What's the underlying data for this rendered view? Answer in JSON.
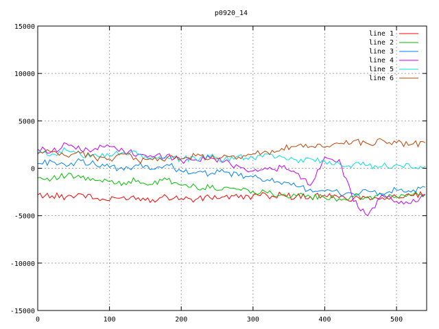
{
  "chart_data": {
    "type": "line",
    "title": "p0920_14",
    "xlabel": "",
    "ylabel": "",
    "xlim": [
      0,
      542
    ],
    "ylim": [
      -15000,
      15000
    ],
    "x_ticks": [
      0,
      100,
      200,
      300,
      400,
      500
    ],
    "y_ticks": [
      -15000,
      -10000,
      -5000,
      0,
      5000,
      10000,
      15000
    ],
    "grid": true,
    "legend_position": "top-right",
    "x": [
      0,
      20,
      40,
      60,
      80,
      100,
      120,
      140,
      160,
      180,
      200,
      220,
      240,
      260,
      280,
      300,
      320,
      340,
      360,
      380,
      400,
      420,
      440,
      460,
      480,
      500,
      520,
      540
    ],
    "series": [
      {
        "name": "line 1",
        "color": "#ff0000",
        "values": [
          -2800,
          -2900,
          -3000,
          -2700,
          -3200,
          -3400,
          -3000,
          -3100,
          -3300,
          -3000,
          -3200,
          -3300,
          -3100,
          -3000,
          -3100,
          -2900,
          -2900,
          -2800,
          -3000,
          -3000,
          -2900,
          -3100,
          -3200,
          -3000,
          -3100,
          -3000,
          -2900,
          -2800
        ]
      },
      {
        "name": "line 2",
        "color": "#00c000",
        "values": [
          -1000,
          -1100,
          -800,
          -1000,
          -1300,
          -1400,
          -1500,
          -1300,
          -1700,
          -1200,
          -1800,
          -1900,
          -2100,
          -2000,
          -2200,
          -2400,
          -2600,
          -2800,
          -2900,
          -3000,
          -3100,
          -3200,
          -3000,
          -3100,
          -2900,
          -3000,
          -2800,
          -2700
        ]
      },
      {
        "name": "line 3",
        "color": "#0080ff",
        "values": [
          500,
          700,
          200,
          800,
          400,
          100,
          -200,
          300,
          -100,
          400,
          -300,
          -500,
          -600,
          -400,
          -800,
          -900,
          -1200,
          -1700,
          -1900,
          -2200,
          -2400,
          -2600,
          -2700,
          -2400,
          -2700,
          -2300,
          -2500,
          -2000
        ]
      },
      {
        "name": "line 4",
        "color": "#c000ff",
        "values": [
          2000,
          1800,
          2600,
          1900,
          2100,
          2300,
          1800,
          1500,
          1200,
          1400,
          800,
          900,
          1100,
          700,
          200,
          -300,
          -100,
          100,
          -500,
          -1800,
          1200,
          900,
          -3500,
          -5000,
          -2800,
          -3500,
          -3700,
          -2800
        ]
      },
      {
        "name": "line 5",
        "color": "#00e0e0",
        "values": [
          1600,
          1500,
          1900,
          1400,
          1500,
          1300,
          1700,
          1400,
          1100,
          1200,
          1000,
          1000,
          1200,
          900,
          1300,
          1100,
          1500,
          1200,
          900,
          1000,
          700,
          500,
          400,
          300,
          200,
          400,
          100,
          200
        ]
      },
      {
        "name": "line 6",
        "color": "#c04000",
        "values": [
          1500,
          1700,
          1300,
          1600,
          1100,
          1000,
          1500,
          800,
          900,
          1100,
          1000,
          1300,
          1000,
          1400,
          1200,
          1500,
          1700,
          2100,
          2300,
          2300,
          2200,
          2600,
          2900,
          2600,
          3000,
          2700,
          2500,
          2700
        ]
      }
    ]
  }
}
